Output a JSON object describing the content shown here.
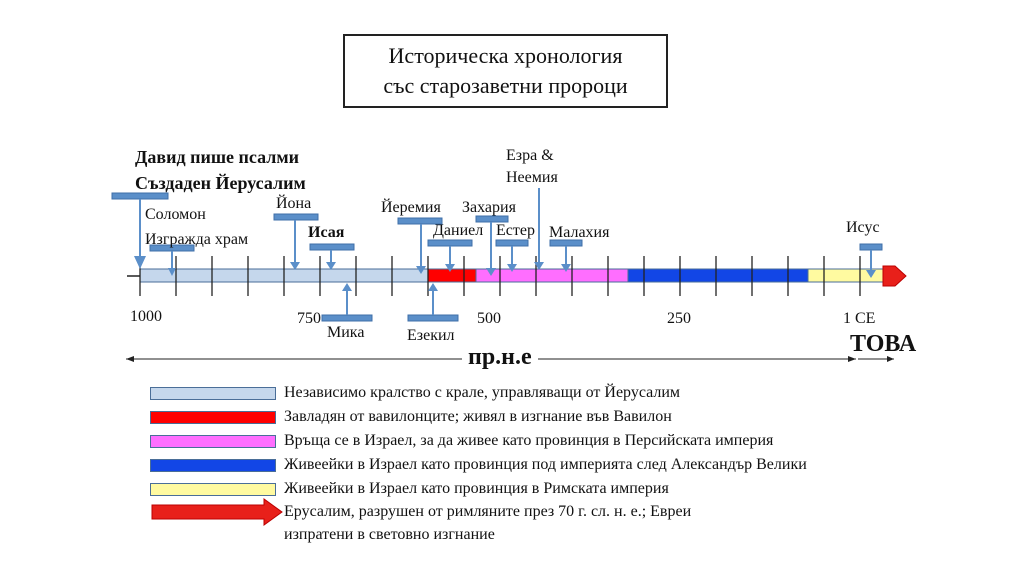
{
  "title": {
    "line1": "Историческа хронология",
    "line2": "със старозаветни пророци"
  },
  "colors": {
    "kingdom": "#c5d7ec",
    "babylon": "#ff0000",
    "persia": "#ff6eff",
    "greek": "#1246e6",
    "rome": "#fffaa0",
    "marker": "#5b8fc9",
    "axis": "#222222"
  },
  "ticks": {
    "t1000": "1000",
    "t750": "750",
    "t500": "500",
    "t250": "250",
    "t1": "1 CE"
  },
  "events": {
    "david_line1": "Давид пише псалми",
    "david_line2": "Създаден Йерусалим",
    "solomon_line1": "Соломон",
    "solomon_line2": "Изгражда храм",
    "jonah": "Йона",
    "isaiah": "Исая",
    "micah": "Мика",
    "jeremiah": "Йеремия",
    "ezekiel": "Езекил",
    "daniel": "Даниел",
    "zechariah": "Захария",
    "esther": "Естер",
    "ezra_line1": "Езра &",
    "ezra_line2": "Неемия",
    "malachi": "Малахия",
    "jesus": "Исус"
  },
  "eras": {
    "bc": "пр.н.е",
    "ad": "ТОВА"
  },
  "legend": [
    {
      "color": "#c5d7ec",
      "text": "Независимо кралство с крале, управляващи от Йерусалим"
    },
    {
      "color": "#ff0000",
      "text": "Завладян от вавилонците; живял в изгнание във Вавилон"
    },
    {
      "color": "#ff6eff",
      "text": "Връща се в Израел, за да живее като провинция в Персийската империя"
    },
    {
      "color": "#1246e6",
      "text": "Живеейки в Израел като провинция под империята след Александър Велики"
    },
    {
      "color": "#fffaa0",
      "text": "Живеейки в Израел като провинция в Римската империя"
    }
  ],
  "legend_arrow": {
    "line1": "Ерусалим, разрушен от римляните през 70 г. сл. н. е.; Евреи",
    "line2": "изпратени в световно изгнание"
  }
}
